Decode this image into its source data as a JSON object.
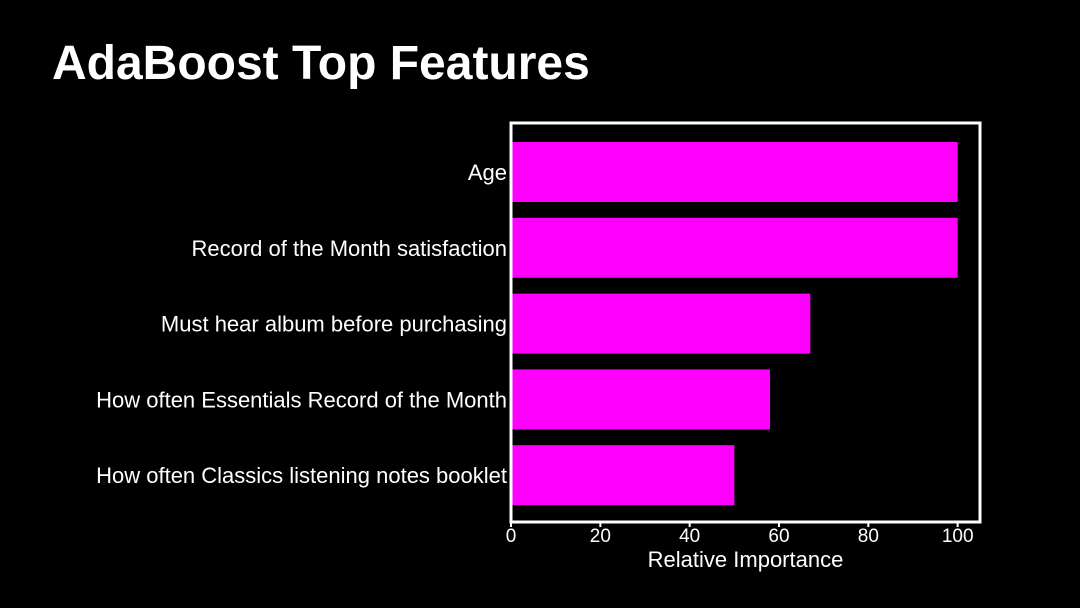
{
  "slide": {
    "title": "AdaBoost Top Features"
  },
  "colors": {
    "background": "#000000",
    "bar": "#ff00ff",
    "text": "#ffffff",
    "axes": "#ffffff"
  },
  "chart_data": {
    "type": "bar",
    "orientation": "horizontal",
    "categories": [
      "Age",
      "Record of the Month satisfaction",
      "Must hear album before purchasing",
      "How often Essentials Record of the Month",
      "How often Classics listening notes booklet"
    ],
    "values": [
      100,
      100,
      67,
      58,
      50
    ],
    "xlabel": "Relative Importance",
    "ylabel": "",
    "xlim": [
      0,
      105
    ],
    "xticks": [
      0,
      20,
      40,
      60,
      80,
      100
    ],
    "grid": false,
    "legend": "none"
  }
}
